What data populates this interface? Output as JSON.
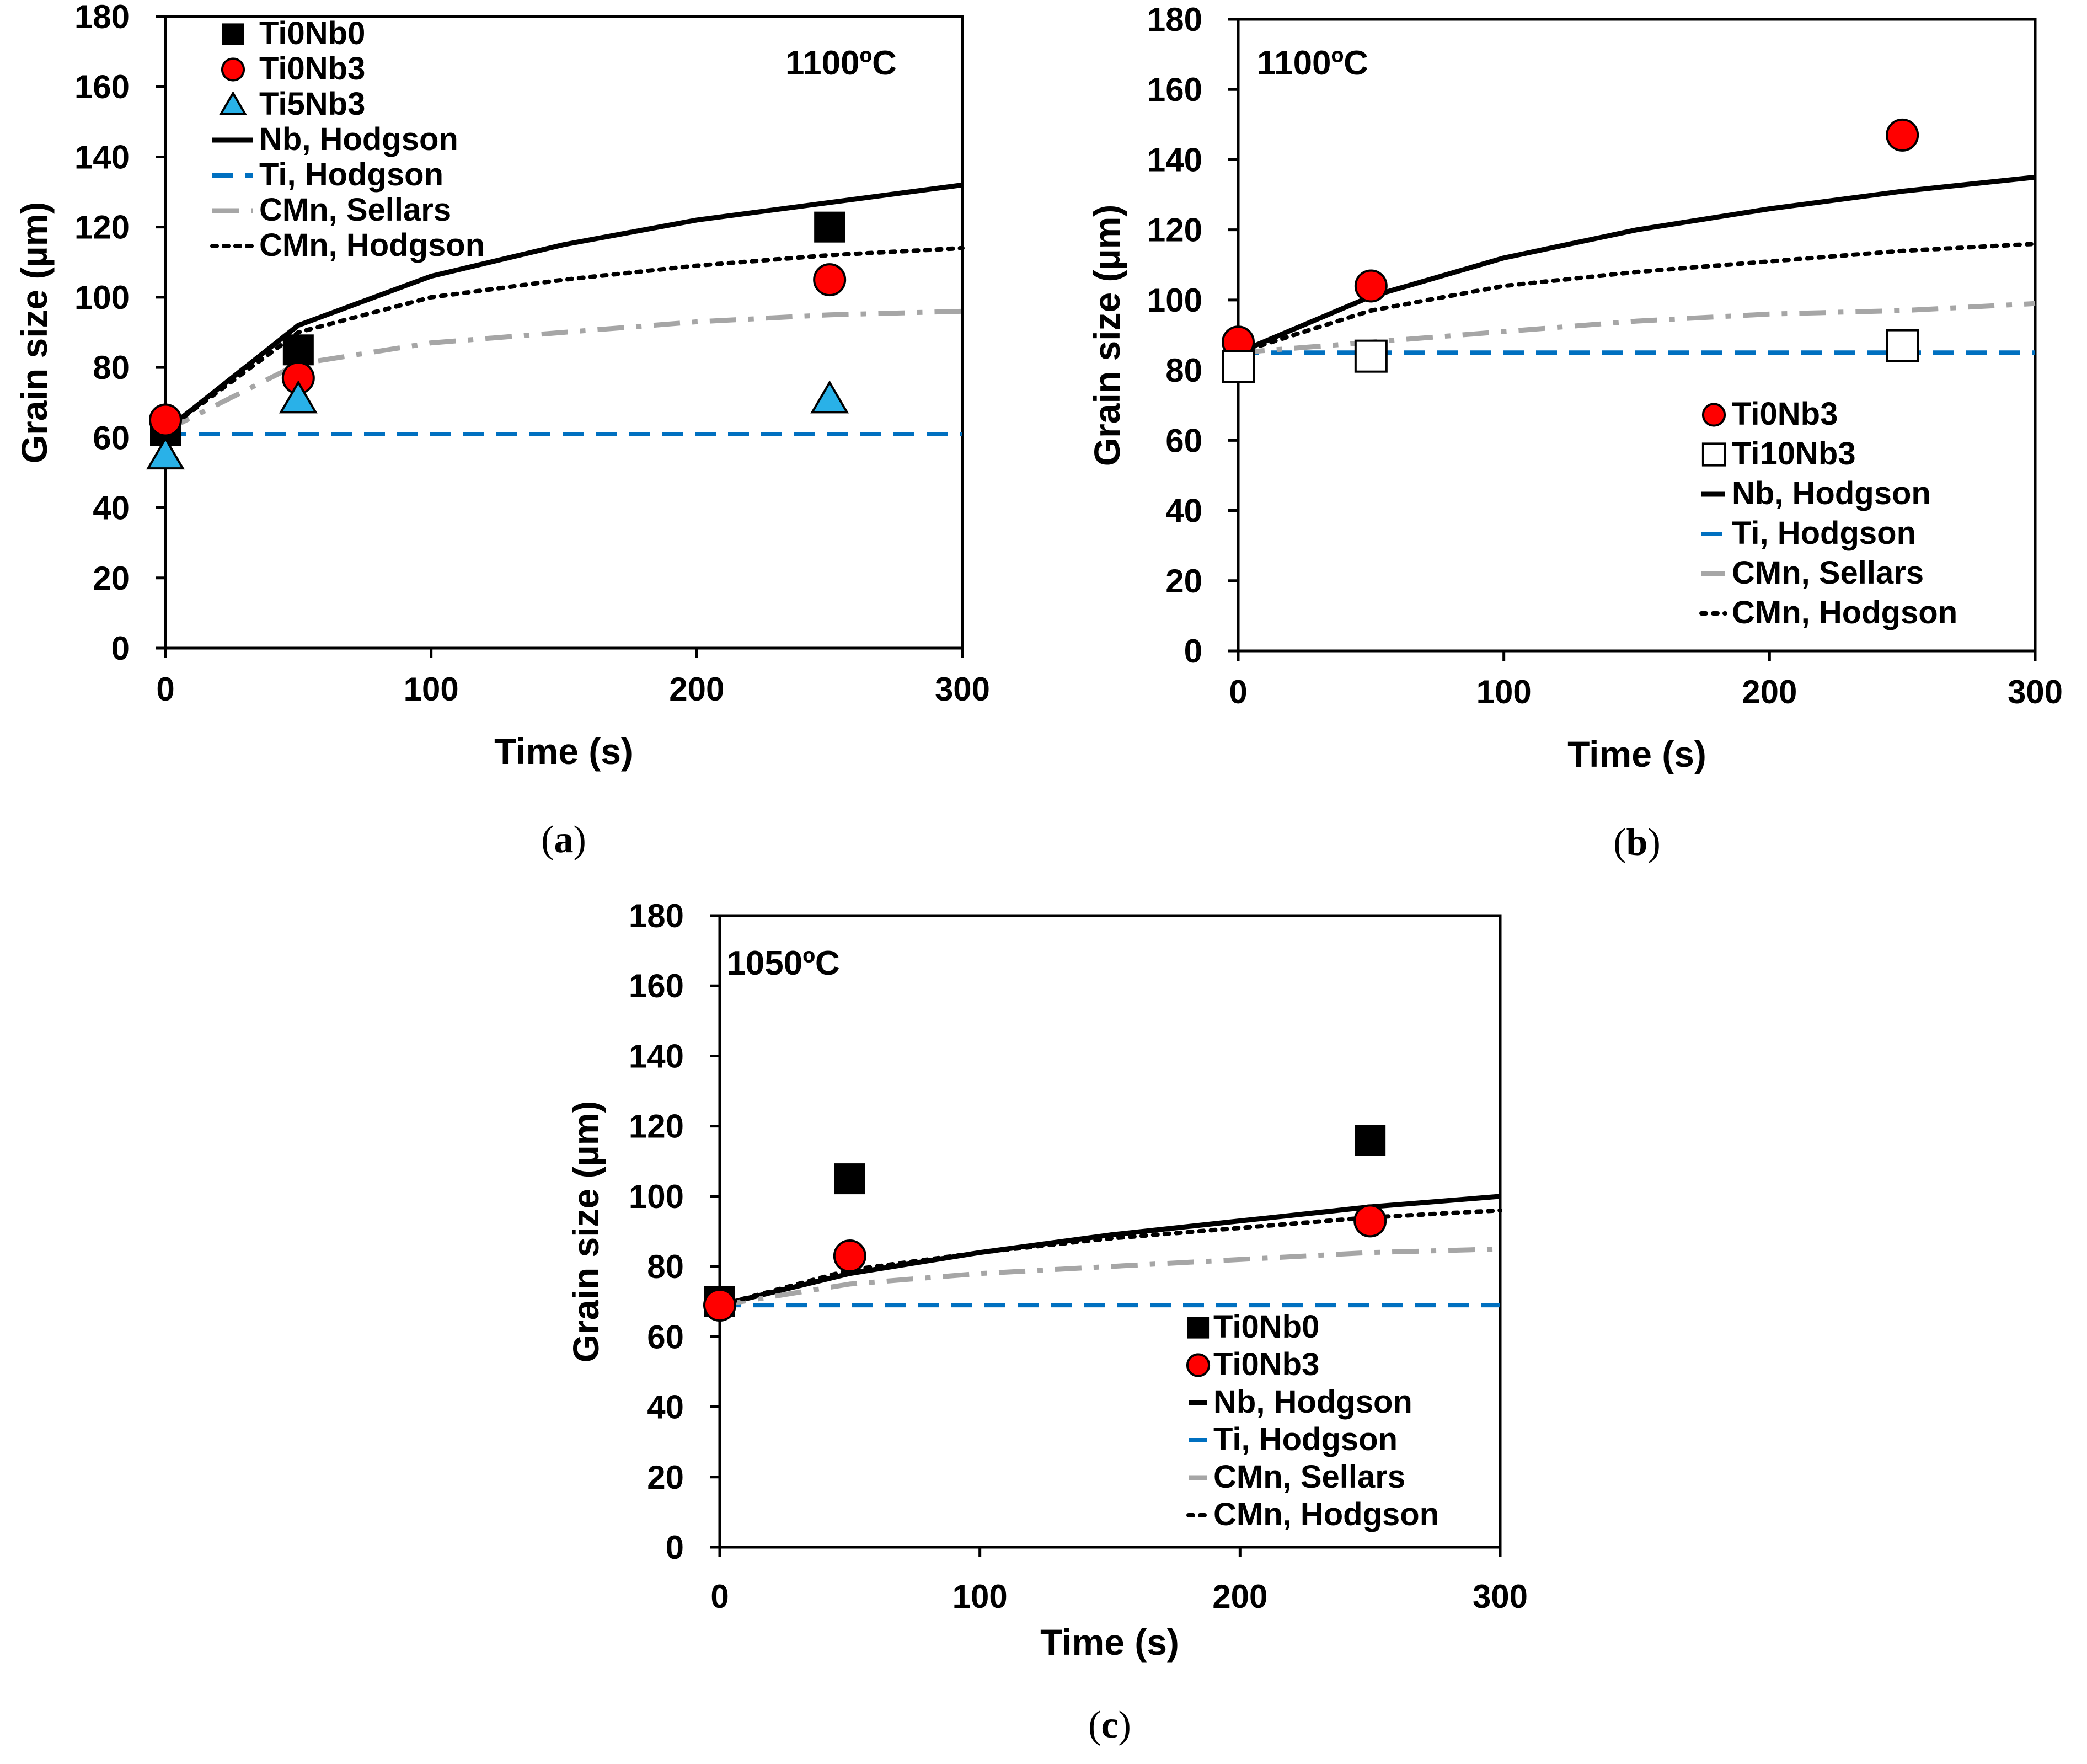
{
  "figure": {
    "panel_count": 3
  },
  "chart_data": [
    {
      "type": "scatter",
      "caption_letter": "a",
      "annotation": "1100ºC",
      "xlabel": "Time (s)",
      "ylabel": "Grain size (µm)",
      "xlim": [
        0,
        300
      ],
      "ylim": [
        0,
        180
      ],
      "x_ticks": [
        0,
        100,
        200,
        300
      ],
      "y_ticks": [
        0,
        20,
        40,
        60,
        80,
        100,
        120,
        140,
        160,
        180
      ],
      "legend": [
        "Ti0Nb0",
        "Ti0Nb3",
        "Ti5Nb3",
        "Nb, Hodgson",
        "Ti, Hodgson",
        "CMn, Sellars",
        "CMn, Hodgson"
      ],
      "markers": [
        {
          "name": "Ti0Nb0",
          "style": "square-black",
          "x": [
            0,
            50,
            250
          ],
          "y": [
            62,
            85,
            120
          ]
        },
        {
          "name": "Ti0Nb3",
          "style": "circle-red",
          "x": [
            0,
            50,
            250
          ],
          "y": [
            65,
            77,
            105
          ]
        },
        {
          "name": "Ti5Nb3",
          "style": "triangle-blue",
          "x": [
            0,
            50,
            250
          ],
          "y": [
            55,
            71,
            71
          ]
        }
      ],
      "curves": [
        {
          "name": "Nb, Hodgson",
          "style": "solid",
          "d0": 62,
          "model": "power",
          "points": [
            [
              0,
              62
            ],
            [
              50,
              92
            ],
            [
              100,
              106
            ],
            [
              150,
              115
            ],
            [
              200,
              122
            ],
            [
              250,
              127
            ],
            [
              300,
              132
            ]
          ]
        },
        {
          "name": "Ti, Hodgson",
          "style": "dash-blue",
          "d0": 61,
          "model": "flat",
          "points": [
            [
              0,
              61
            ],
            [
              300,
              61
            ]
          ]
        },
        {
          "name": "CMn, Sellars",
          "style": "dashdot-gray",
          "d0": 62,
          "model": "power",
          "points": [
            [
              0,
              62
            ],
            [
              50,
              81
            ],
            [
              100,
              87
            ],
            [
              150,
              90
            ],
            [
              200,
              93
            ],
            [
              250,
              95
            ],
            [
              300,
              96
            ]
          ]
        },
        {
          "name": "CMn, Hodgson",
          "style": "dotted",
          "d0": 62,
          "model": "power",
          "points": [
            [
              0,
              62
            ],
            [
              50,
              90
            ],
            [
              100,
              100
            ],
            [
              150,
              105
            ],
            [
              200,
              109
            ],
            [
              250,
              112
            ],
            [
              300,
              114
            ]
          ]
        }
      ]
    },
    {
      "type": "scatter",
      "caption_letter": "b",
      "annotation": "1100ºC",
      "xlabel": "Time (s)",
      "ylabel": "Grain size (µm)",
      "xlim": [
        0,
        300
      ],
      "ylim": [
        0,
        180
      ],
      "x_ticks": [
        0,
        100,
        200,
        300
      ],
      "y_ticks": [
        0,
        20,
        40,
        60,
        80,
        100,
        120,
        140,
        160,
        180
      ],
      "legend": [
        "Ti0Nb3",
        "Ti10Nb3",
        "Nb, Hodgson",
        "Ti, Hodgson",
        "CMn, Sellars",
        "CMn, Hodgson"
      ],
      "markers": [
        {
          "name": "Ti0Nb3",
          "style": "circle-red",
          "x": [
            0,
            50,
            250
          ],
          "y": [
            88,
            104,
            147
          ]
        },
        {
          "name": "Ti10Nb3",
          "style": "square-open",
          "x": [
            0,
            50,
            250
          ],
          "y": [
            81,
            84,
            87
          ]
        }
      ],
      "curves": [
        {
          "name": "Nb, Hodgson",
          "style": "solid",
          "d0": 85,
          "model": "power",
          "points": [
            [
              0,
              85
            ],
            [
              50,
              101
            ],
            [
              100,
              112
            ],
            [
              150,
              120
            ],
            [
              200,
              126
            ],
            [
              250,
              131
            ],
            [
              300,
              135
            ]
          ]
        },
        {
          "name": "Ti, Hodgson",
          "style": "dash-blue",
          "d0": 85,
          "model": "flat",
          "points": [
            [
              0,
              85
            ],
            [
              300,
              85
            ]
          ]
        },
        {
          "name": "CMn, Sellars",
          "style": "dashdot-gray",
          "d0": 85,
          "model": "power",
          "points": [
            [
              0,
              85
            ],
            [
              50,
              88
            ],
            [
              100,
              91
            ],
            [
              150,
              94
            ],
            [
              200,
              96
            ],
            [
              250,
              97
            ],
            [
              300,
              99
            ]
          ]
        },
        {
          "name": "CMn, Hodgson",
          "style": "dotted",
          "d0": 85,
          "model": "power",
          "points": [
            [
              0,
              85
            ],
            [
              50,
              97
            ],
            [
              100,
              104
            ],
            [
              150,
              108
            ],
            [
              200,
              111
            ],
            [
              250,
              114
            ],
            [
              300,
              116
            ]
          ]
        }
      ]
    },
    {
      "type": "scatter",
      "caption_letter": "c",
      "annotation": "1050ºC",
      "xlabel": "Time (s)",
      "ylabel": "Grain size (µm)",
      "xlim": [
        0,
        300
      ],
      "ylim": [
        0,
        180
      ],
      "x_ticks": [
        0,
        100,
        200,
        300
      ],
      "y_ticks": [
        0,
        20,
        40,
        60,
        80,
        100,
        120,
        140,
        160,
        180
      ],
      "legend": [
        "Ti0Nb0",
        "Ti0Nb3",
        "Nb, Hodgson",
        "Ti, Hodgson",
        "CMn, Sellars",
        "CMn, Hodgson"
      ],
      "markers": [
        {
          "name": "Ti0Nb0",
          "style": "square-black",
          "x": [
            0,
            50,
            250
          ],
          "y": [
            70,
            105,
            116
          ]
        },
        {
          "name": "Ti0Nb3",
          "style": "circle-red",
          "x": [
            0,
            50,
            250
          ],
          "y": [
            69,
            83,
            93
          ]
        }
      ],
      "curves": [
        {
          "name": "Nb, Hodgson",
          "style": "solid",
          "d0": 69,
          "model": "power",
          "points": [
            [
              0,
              69
            ],
            [
              50,
              78
            ],
            [
              100,
              84
            ],
            [
              150,
              89
            ],
            [
              200,
              93
            ],
            [
              250,
              97
            ],
            [
              300,
              100
            ]
          ]
        },
        {
          "name": "Ti, Hodgson",
          "style": "dash-blue",
          "d0": 69,
          "model": "flat",
          "points": [
            [
              0,
              69
            ],
            [
              300,
              69
            ]
          ]
        },
        {
          "name": "CMn, Sellars",
          "style": "dashdot-gray",
          "d0": 69,
          "model": "power",
          "points": [
            [
              0,
              69
            ],
            [
              50,
              75
            ],
            [
              100,
              78
            ],
            [
              150,
              80
            ],
            [
              200,
              82
            ],
            [
              250,
              84
            ],
            [
              300,
              85
            ]
          ]
        },
        {
          "name": "CMn, Hodgson",
          "style": "dotted",
          "d0": 69,
          "model": "power",
          "points": [
            [
              0,
              69
            ],
            [
              50,
              79
            ],
            [
              100,
              84
            ],
            [
              150,
              88
            ],
            [
              200,
              91
            ],
            [
              250,
              94
            ],
            [
              300,
              96
            ]
          ]
        }
      ]
    }
  ],
  "colors": {
    "axis": "#000000",
    "black_marker": "#000000",
    "red_marker": "#ff0000",
    "blue_marker": "#29b1e8",
    "ti_line": "#0070c0",
    "sellars_line": "#a6a6a6",
    "open_marker_fill": "#ffffff"
  }
}
